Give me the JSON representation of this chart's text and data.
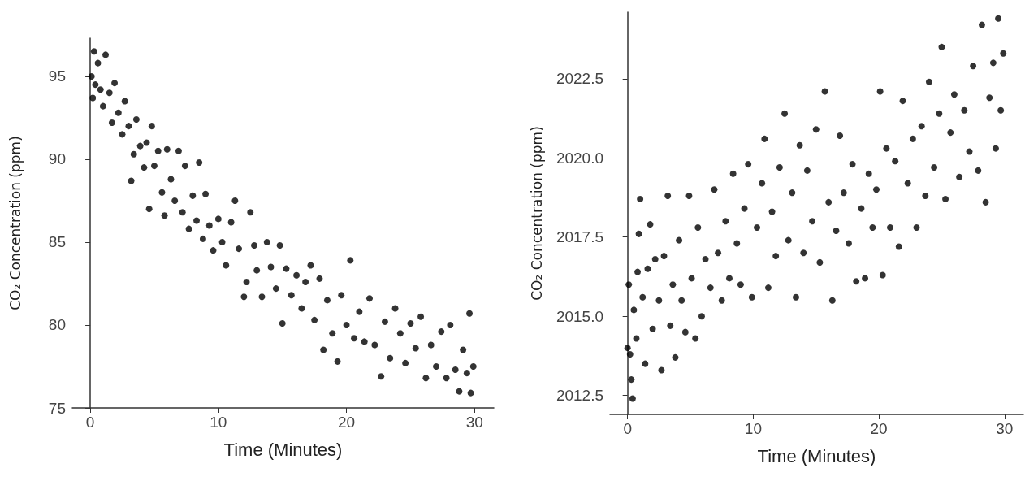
{
  "chart_data": [
    {
      "type": "scatter",
      "xlabel": "Time (Minutes)",
      "ylabel": "CO₂ Concentration (ppm)",
      "marker": "circle",
      "grid": false,
      "xlim": [
        -1.4,
        31.5
      ],
      "xticks": [
        0,
        10,
        20,
        30
      ],
      "ylim": [
        75,
        97.3
      ],
      "yticks": [
        75,
        80,
        85,
        90,
        95
      ],
      "series": [
        {
          "color": "#000000",
          "x": [
            0.1,
            0.2,
            0.3,
            0.4,
            0.6,
            0.8,
            1.0,
            1.2,
            1.5,
            1.7,
            1.9,
            2.2,
            2.5,
            2.7,
            3.0,
            3.2,
            3.4,
            3.6,
            3.9,
            4.2,
            4.4,
            4.6,
            4.8,
            5.0,
            5.3,
            5.6,
            5.8,
            6.0,
            6.3,
            6.6,
            6.9,
            7.2,
            7.4,
            7.7,
            8.0,
            8.3,
            8.5,
            8.8,
            9.0,
            9.3,
            9.6,
            10.0,
            10.3,
            10.6,
            11.0,
            11.3,
            11.6,
            12.0,
            12.2,
            12.5,
            12.8,
            13.0,
            13.4,
            13.8,
            14.1,
            14.5,
            14.8,
            15.0,
            15.3,
            15.7,
            16.1,
            16.5,
            16.8,
            17.2,
            17.5,
            17.9,
            18.2,
            18.5,
            18.9,
            19.3,
            19.6,
            20.0,
            20.3,
            20.6,
            21.0,
            21.4,
            21.8,
            22.2,
            22.7,
            23.0,
            23.4,
            23.8,
            24.2,
            24.6,
            25.0,
            25.4,
            25.8,
            26.2,
            26.6,
            27.0,
            27.4,
            27.8,
            28.1,
            28.5,
            28.8,
            29.1,
            29.4,
            29.6,
            29.7,
            29.9
          ],
          "values": [
            95.0,
            93.7,
            96.5,
            94.5,
            95.8,
            94.2,
            93.2,
            96.3,
            94.0,
            92.2,
            94.6,
            92.8,
            91.5,
            93.5,
            92.0,
            88.7,
            90.3,
            92.4,
            90.8,
            89.5,
            91.0,
            87.0,
            92.0,
            89.6,
            90.5,
            88.0,
            86.6,
            90.6,
            88.8,
            87.5,
            90.5,
            86.8,
            89.6,
            85.8,
            87.8,
            86.3,
            89.8,
            85.2,
            87.9,
            86.0,
            84.5,
            86.4,
            85.0,
            83.6,
            86.2,
            87.5,
            84.6,
            81.7,
            82.6,
            86.8,
            84.8,
            83.3,
            81.7,
            85.0,
            83.5,
            82.2,
            84.8,
            80.1,
            83.4,
            81.8,
            83.0,
            81.0,
            82.6,
            83.6,
            80.3,
            82.8,
            78.5,
            81.5,
            79.5,
            77.8,
            81.8,
            80.0,
            83.9,
            79.2,
            80.8,
            79.0,
            81.6,
            78.8,
            76.9,
            80.2,
            78.0,
            81.0,
            79.5,
            77.7,
            80.1,
            78.6,
            80.5,
            76.8,
            78.8,
            77.5,
            79.6,
            76.8,
            80.0,
            77.3,
            76.0,
            78.5,
            77.1,
            80.7,
            75.9,
            77.5
          ]
        }
      ]
    },
    {
      "type": "scatter",
      "xlabel": "Time (Minutes)",
      "ylabel": "CO₂ Concentration (ppm)",
      "marker": "circle",
      "grid": false,
      "xlim": [
        -1.4,
        31.5
      ],
      "xticks": [
        0,
        10,
        20,
        30
      ],
      "ylim": [
        2011.9,
        2024.6
      ],
      "yticks": [
        2012.5,
        {
          "value": 2015,
          "label": "2015.0"
        },
        2017.5,
        {
          "value": 2020,
          "label": "2020.0"
        },
        2022.5
      ],
      "series": [
        {
          "color": "#000000",
          "x": [
            0.0,
            0.1,
            0.2,
            0.3,
            0.4,
            0.5,
            0.7,
            0.8,
            0.9,
            1.0,
            1.2,
            1.4,
            1.6,
            1.8,
            2.0,
            2.2,
            2.5,
            2.7,
            2.9,
            3.2,
            3.4,
            3.6,
            3.8,
            4.1,
            4.3,
            4.6,
            4.9,
            5.1,
            5.4,
            5.6,
            5.9,
            6.2,
            6.6,
            6.9,
            7.2,
            7.5,
            7.8,
            8.1,
            8.4,
            8.7,
            9.0,
            9.3,
            9.6,
            9.9,
            10.3,
            10.7,
            10.9,
            11.2,
            11.5,
            11.8,
            12.1,
            12.5,
            12.8,
            13.1,
            13.4,
            13.7,
            14.0,
            14.3,
            14.7,
            15.0,
            15.3,
            15.7,
            16.0,
            16.3,
            16.6,
            16.9,
            17.2,
            17.6,
            17.9,
            18.2,
            18.6,
            18.9,
            19.2,
            19.5,
            19.8,
            20.1,
            20.3,
            20.6,
            20.9,
            21.3,
            21.6,
            21.9,
            22.3,
            22.7,
            23.0,
            23.4,
            23.7,
            24.0,
            24.4,
            24.8,
            25.0,
            25.3,
            25.7,
            26.0,
            26.4,
            26.8,
            27.2,
            27.5,
            27.9,
            28.2,
            28.5,
            28.8,
            29.1,
            29.3,
            29.5,
            29.7,
            29.9
          ],
          "values": [
            2014.0,
            2016.0,
            2013.8,
            2013.0,
            2012.4,
            2015.2,
            2014.3,
            2016.4,
            2017.6,
            2018.7,
            2015.6,
            2013.5,
            2016.5,
            2017.9,
            2014.6,
            2016.8,
            2015.5,
            2013.3,
            2016.9,
            2018.8,
            2014.7,
            2016.0,
            2013.7,
            2017.4,
            2015.5,
            2014.5,
            2018.8,
            2016.2,
            2014.3,
            2017.8,
            2015.0,
            2016.8,
            2015.9,
            2019.0,
            2017.0,
            2015.5,
            2018.0,
            2016.2,
            2019.5,
            2017.3,
            2016.0,
            2018.4,
            2019.8,
            2015.6,
            2017.8,
            2019.2,
            2020.6,
            2015.9,
            2018.3,
            2016.9,
            2019.7,
            2021.4,
            2017.4,
            2018.9,
            2015.6,
            2020.4,
            2017.0,
            2019.6,
            2018.0,
            2020.9,
            2016.7,
            2022.1,
            2018.6,
            2015.5,
            2017.7,
            2020.7,
            2018.9,
            2017.3,
            2019.8,
            2016.1,
            2018.4,
            2016.2,
            2019.5,
            2017.8,
            2019.0,
            2022.1,
            2016.3,
            2020.3,
            2017.8,
            2019.9,
            2017.2,
            2021.8,
            2019.2,
            2020.6,
            2017.8,
            2021.0,
            2018.8,
            2022.4,
            2019.7,
            2021.4,
            2023.5,
            2018.7,
            2020.8,
            2022.0,
            2019.4,
            2021.5,
            2020.2,
            2022.9,
            2019.6,
            2024.2,
            2018.6,
            2021.9,
            2023.0,
            2020.3,
            2024.4,
            2021.5,
            2023.3
          ]
        }
      ]
    }
  ]
}
